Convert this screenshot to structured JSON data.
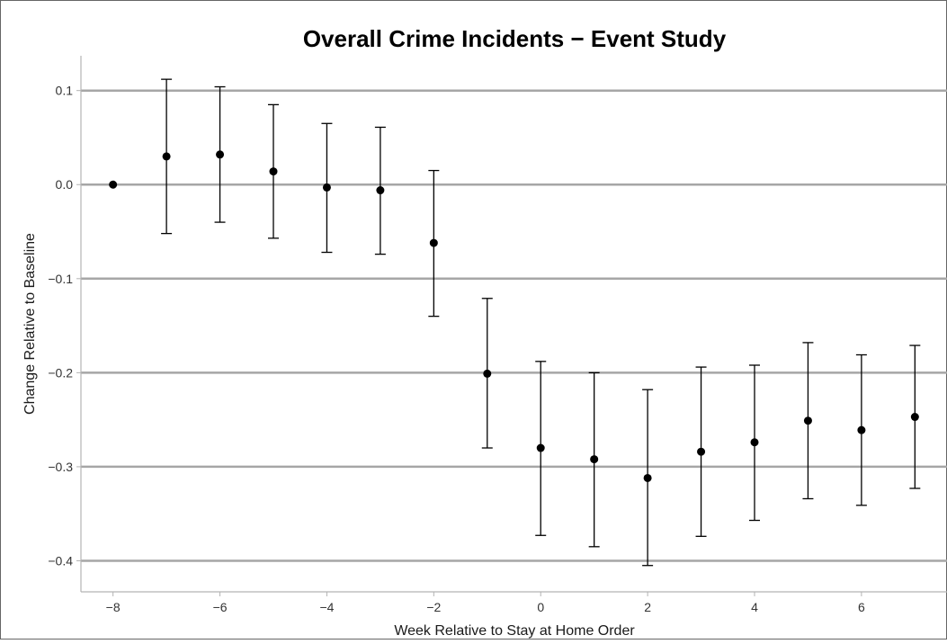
{
  "chart_data": {
    "type": "scatter",
    "title": "Overall Crime Incidents − Event Study",
    "xlabel": "Week Relative to Stay at Home Order",
    "ylabel": "Change Relative to Baseline",
    "xlim": [
      -8.6,
      7.6
    ],
    "ylim": [
      -0.433,
      0.137
    ],
    "x_ticks": [
      -8,
      -6,
      -4,
      -2,
      0,
      2,
      4,
      6
    ],
    "x_tick_labels": [
      "−8",
      "−6",
      "−4",
      "−2",
      "0",
      "2",
      "4",
      "6"
    ],
    "y_ticks": [
      0.1,
      0.0,
      -0.1,
      -0.2,
      -0.3,
      -0.4
    ],
    "y_tick_labels": [
      "0.1",
      "0.0",
      "−0.1",
      "−0.2",
      "−0.3",
      "−0.4"
    ],
    "grid": true,
    "series": [
      {
        "x": [
          -8,
          -7,
          -6,
          -5,
          -4,
          -3,
          -2,
          -1,
          0,
          1,
          2,
          3,
          4,
          5,
          6,
          7
        ],
        "y": [
          0.0,
          0.03,
          0.032,
          0.014,
          -0.003,
          -0.006,
          -0.062,
          -0.201,
          -0.28,
          -0.292,
          -0.312,
          -0.284,
          -0.274,
          -0.251,
          -0.261,
          -0.247
        ],
        "ci_low": [
          0.0,
          -0.052,
          -0.04,
          -0.057,
          -0.072,
          -0.074,
          -0.14,
          -0.28,
          -0.373,
          -0.385,
          -0.405,
          -0.374,
          -0.357,
          -0.334,
          -0.341,
          -0.323
        ],
        "ci_high": [
          0.0,
          0.112,
          0.104,
          0.085,
          0.065,
          0.061,
          0.015,
          -0.121,
          -0.188,
          -0.2,
          -0.218,
          -0.194,
          -0.192,
          -0.168,
          -0.181,
          -0.171
        ]
      }
    ]
  },
  "colors": {
    "point": "#000000",
    "errorbar": "#000000",
    "grid": "#a6a6a6",
    "axis": "#b3b3b3",
    "border": "#666666"
  }
}
